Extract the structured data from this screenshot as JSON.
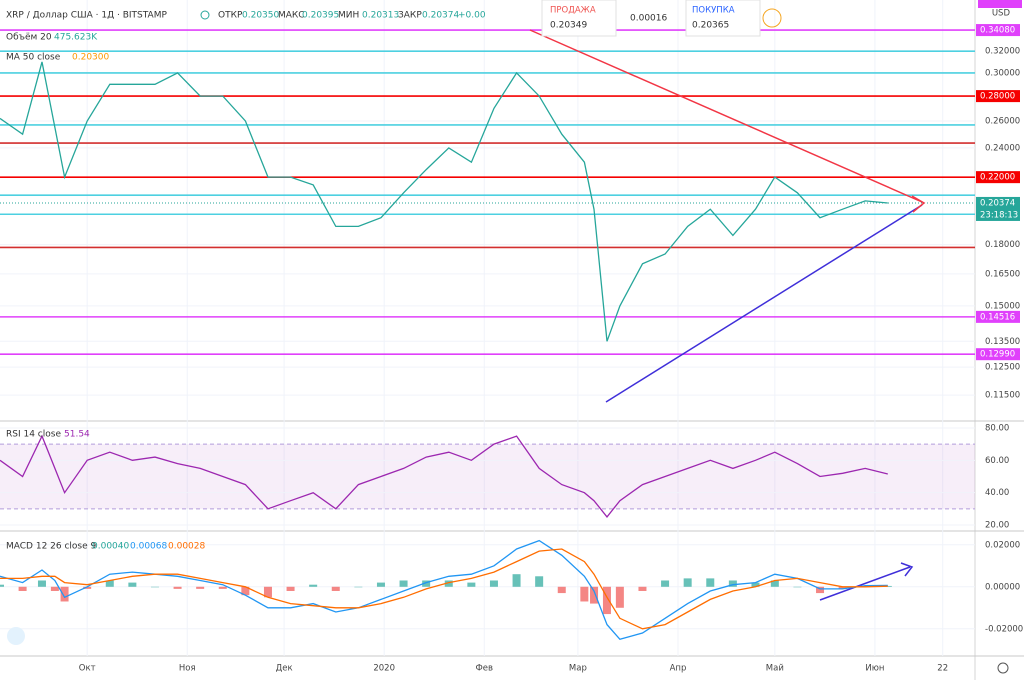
{
  "header": {
    "symbol": "XRP / Доллар США · 1Д · BITSTAMP",
    "ohlc": [
      {
        "label": "ОТКР",
        "value": "0.20350"
      },
      {
        "label": "МАКС",
        "value": "0.20395"
      },
      {
        "label": "МИН",
        "value": "0.20313"
      },
      {
        "label": "ЗАКР",
        "value": "0.20374"
      }
    ],
    "change": "+0.00",
    "volume_label": "Объём 20",
    "volume_value": "475.623K",
    "ma_label": "MA 50 close",
    "ma_value": "0.20300"
  },
  "trade": {
    "sell_label": "ПРОДАЖА",
    "sell": "0.20349",
    "spread": "0.00016",
    "buy_label": "ПОКУПКА",
    "buy": "0.20365"
  },
  "currency": "USD",
  "chart_data": [
    {
      "type": "line",
      "title": "XRP / Доллар США · 1Д · BITSTAMP",
      "log_scale": true,
      "x": [
        -27,
        -20,
        -14,
        -10,
        -7,
        0,
        7,
        14,
        21,
        28,
        35,
        42,
        49,
        56,
        63,
        70,
        77,
        84,
        91,
        98,
        105,
        112,
        119,
        126,
        133,
        140,
        147,
        154,
        157,
        161,
        165,
        172,
        179,
        186,
        193,
        200,
        207,
        213,
        220,
        227,
        234,
        241,
        248
      ],
      "xlim": [
        -27,
        275
      ],
      "xticks": [
        {
          "value": 0,
          "label": "Окт"
        },
        {
          "value": 31,
          "label": "Ноя"
        },
        {
          "value": 61,
          "label": "Дек"
        },
        {
          "value": 92,
          "label": "2020"
        },
        {
          "value": 123,
          "label": "Фев"
        },
        {
          "value": 152,
          "label": "Мар"
        },
        {
          "value": 183,
          "label": "Апр"
        },
        {
          "value": 213,
          "label": "Май"
        },
        {
          "value": 244,
          "label": "Июн"
        },
        {
          "value": 265,
          "label": "22"
        }
      ],
      "series": [
        {
          "color": "#26a69a",
          "values": [
            0.262,
            0.25,
            0.31,
            0.255,
            0.22,
            0.26,
            0.29,
            0.29,
            0.29,
            0.3,
            0.28,
            0.28,
            0.26,
            0.22,
            0.22,
            0.215,
            0.19,
            0.19,
            0.195,
            0.21,
            0.225,
            0.24,
            0.23,
            0.27,
            0.3,
            0.28,
            0.25,
            0.23,
            0.2,
            0.135,
            0.15,
            0.17,
            0.175,
            0.19,
            0.2,
            0.185,
            0.2,
            0.22,
            0.21,
            0.195,
            0.2,
            0.205,
            0.2037
          ]
        }
      ],
      "ylim": [
        0.1068,
        0.3727
      ],
      "yticks": [
        {
          "value": 0.32,
          "label": "0.32000"
        },
        {
          "value": 0.3,
          "label": "0.30000"
        },
        {
          "value": 0.26,
          "label": "0.26000"
        },
        {
          "value": 0.24,
          "label": "0.24000"
        },
        {
          "value": 0.18,
          "label": "0.18000"
        },
        {
          "value": 0.165,
          "label": "0.16500"
        },
        {
          "value": 0.15,
          "label": "0.15000"
        },
        {
          "value": 0.135,
          "label": "0.13500"
        },
        {
          "value": 0.125,
          "label": "0.12500"
        },
        {
          "value": 0.115,
          "label": "0.11500"
        }
      ],
      "levels": [
        {
          "value": 0.3408,
          "color": "#e040fb",
          "label": "0.34080"
        },
        {
          "value": 0.32,
          "color": "#4dd0e1"
        },
        {
          "value": 0.3,
          "color": "#4dd0e1"
        },
        {
          "value": 0.28,
          "color": "#f50000",
          "label": "0.28000"
        },
        {
          "value": 0.257,
          "color": "#4dd0e1"
        },
        {
          "value": 0.2435,
          "color": "#d32f2f"
        },
        {
          "value": 0.22,
          "color": "#f50000",
          "label": "0.22000"
        },
        {
          "value": 0.2085,
          "color": "#4dd0e1"
        },
        {
          "value": 0.197,
          "color": "#4dd0e1"
        },
        {
          "value": 0.1785,
          "color": "#d32f2f"
        },
        {
          "value": 0.14516,
          "color": "#e040fb",
          "label": "0.14516"
        },
        {
          "value": 0.1299,
          "color": "#e040fb",
          "label": "0.12990"
        }
      ],
      "last_price": {
        "value": 0.20374,
        "label": "0.20374"
      },
      "countdown": "23:18:13"
    },
    {
      "type": "line",
      "title": "RSI 14 close",
      "legend_value": "51.54",
      "series": [
        {
          "color": "#9c27b0",
          "values": [
            60,
            50,
            75,
            55,
            40,
            60,
            65,
            60,
            62,
            58,
            55,
            50,
            45,
            30,
            35,
            40,
            30,
            45,
            50,
            55,
            62,
            65,
            60,
            70,
            75,
            55,
            45,
            40,
            35,
            25,
            35,
            45,
            50,
            55,
            60,
            55,
            60,
            65,
            58,
            50,
            52,
            55,
            51.54
          ]
        }
      ],
      "band": [
        30,
        70
      ],
      "ylim": [
        16.9,
        83.7
      ],
      "yticks": [
        {
          "value": 80,
          "label": "80.00"
        },
        {
          "value": 60,
          "label": "60.00"
        },
        {
          "value": 40,
          "label": "40.00"
        },
        {
          "value": 20,
          "label": "20.00"
        }
      ]
    },
    {
      "type": "macd",
      "title": "MACD 12 26 close 9",
      "legend_values": [
        "0.00040",
        "0.00068",
        "0.00028"
      ],
      "histogram": {
        "colors": [
          "#26a69a",
          "#ef5350"
        ],
        "values": [
          0.001,
          -0.002,
          0.003,
          -0.002,
          -0.007,
          -0.001,
          0.003,
          0.002,
          0,
          -0.001,
          -0.001,
          -0.001,
          -0.004,
          -0.005,
          -0.002,
          0.001,
          -0.002,
          0,
          0.002,
          0.003,
          0.003,
          0.003,
          0.002,
          0.003,
          0.006,
          0.005,
          -0.003,
          -0.007,
          -0.008,
          -0.013,
          -0.01,
          -0.002,
          0.003,
          0.004,
          0.004,
          0.003,
          0.002,
          0.003,
          0,
          -0.003,
          -0.001,
          0.0005,
          0.0004
        ]
      },
      "series": [
        {
          "color": "#2196f3",
          "values": [
            0.005,
            0.002,
            0.008,
            0.003,
            -0.005,
            0,
            0.006,
            0.007,
            0.006,
            0.005,
            0.003,
            0.001,
            -0.004,
            -0.01,
            -0.01,
            -0.008,
            -0.012,
            -0.01,
            -0.006,
            -0.002,
            0.002,
            0.005,
            0.006,
            0.01,
            0.018,
            0.022,
            0.015,
            0.005,
            -0.002,
            -0.018,
            -0.025,
            -0.022,
            -0.015,
            -0.008,
            -0.002,
            0.001,
            0.002,
            0.006,
            0.004,
            -0.001,
            -0.001,
            0.0005,
            0.00068
          ]
        },
        {
          "color": "#ff6d00",
          "values": [
            0.004,
            0.004,
            0.005,
            0.005,
            0.002,
            0.001,
            0.003,
            0.005,
            0.006,
            0.006,
            0.004,
            0.002,
            0,
            -0.005,
            -0.008,
            -0.009,
            -0.01,
            -0.01,
            -0.008,
            -0.005,
            -0.001,
            0.002,
            0.004,
            0.007,
            0.012,
            0.017,
            0.018,
            0.012,
            0.006,
            -0.005,
            -0.015,
            -0.02,
            -0.018,
            -0.012,
            -0.006,
            -0.002,
            0,
            0.003,
            0.004,
            0.002,
            0,
            0,
            0.00028
          ]
        }
      ],
      "ylim": [
        -0.0325,
        0.0261
      ],
      "yticks": [
        {
          "value": 0.02,
          "label": "0.02000"
        },
        {
          "value": 0,
          "label": "0.00000"
        },
        {
          "value": -0.02,
          "label": "-0.02000"
        }
      ]
    }
  ]
}
